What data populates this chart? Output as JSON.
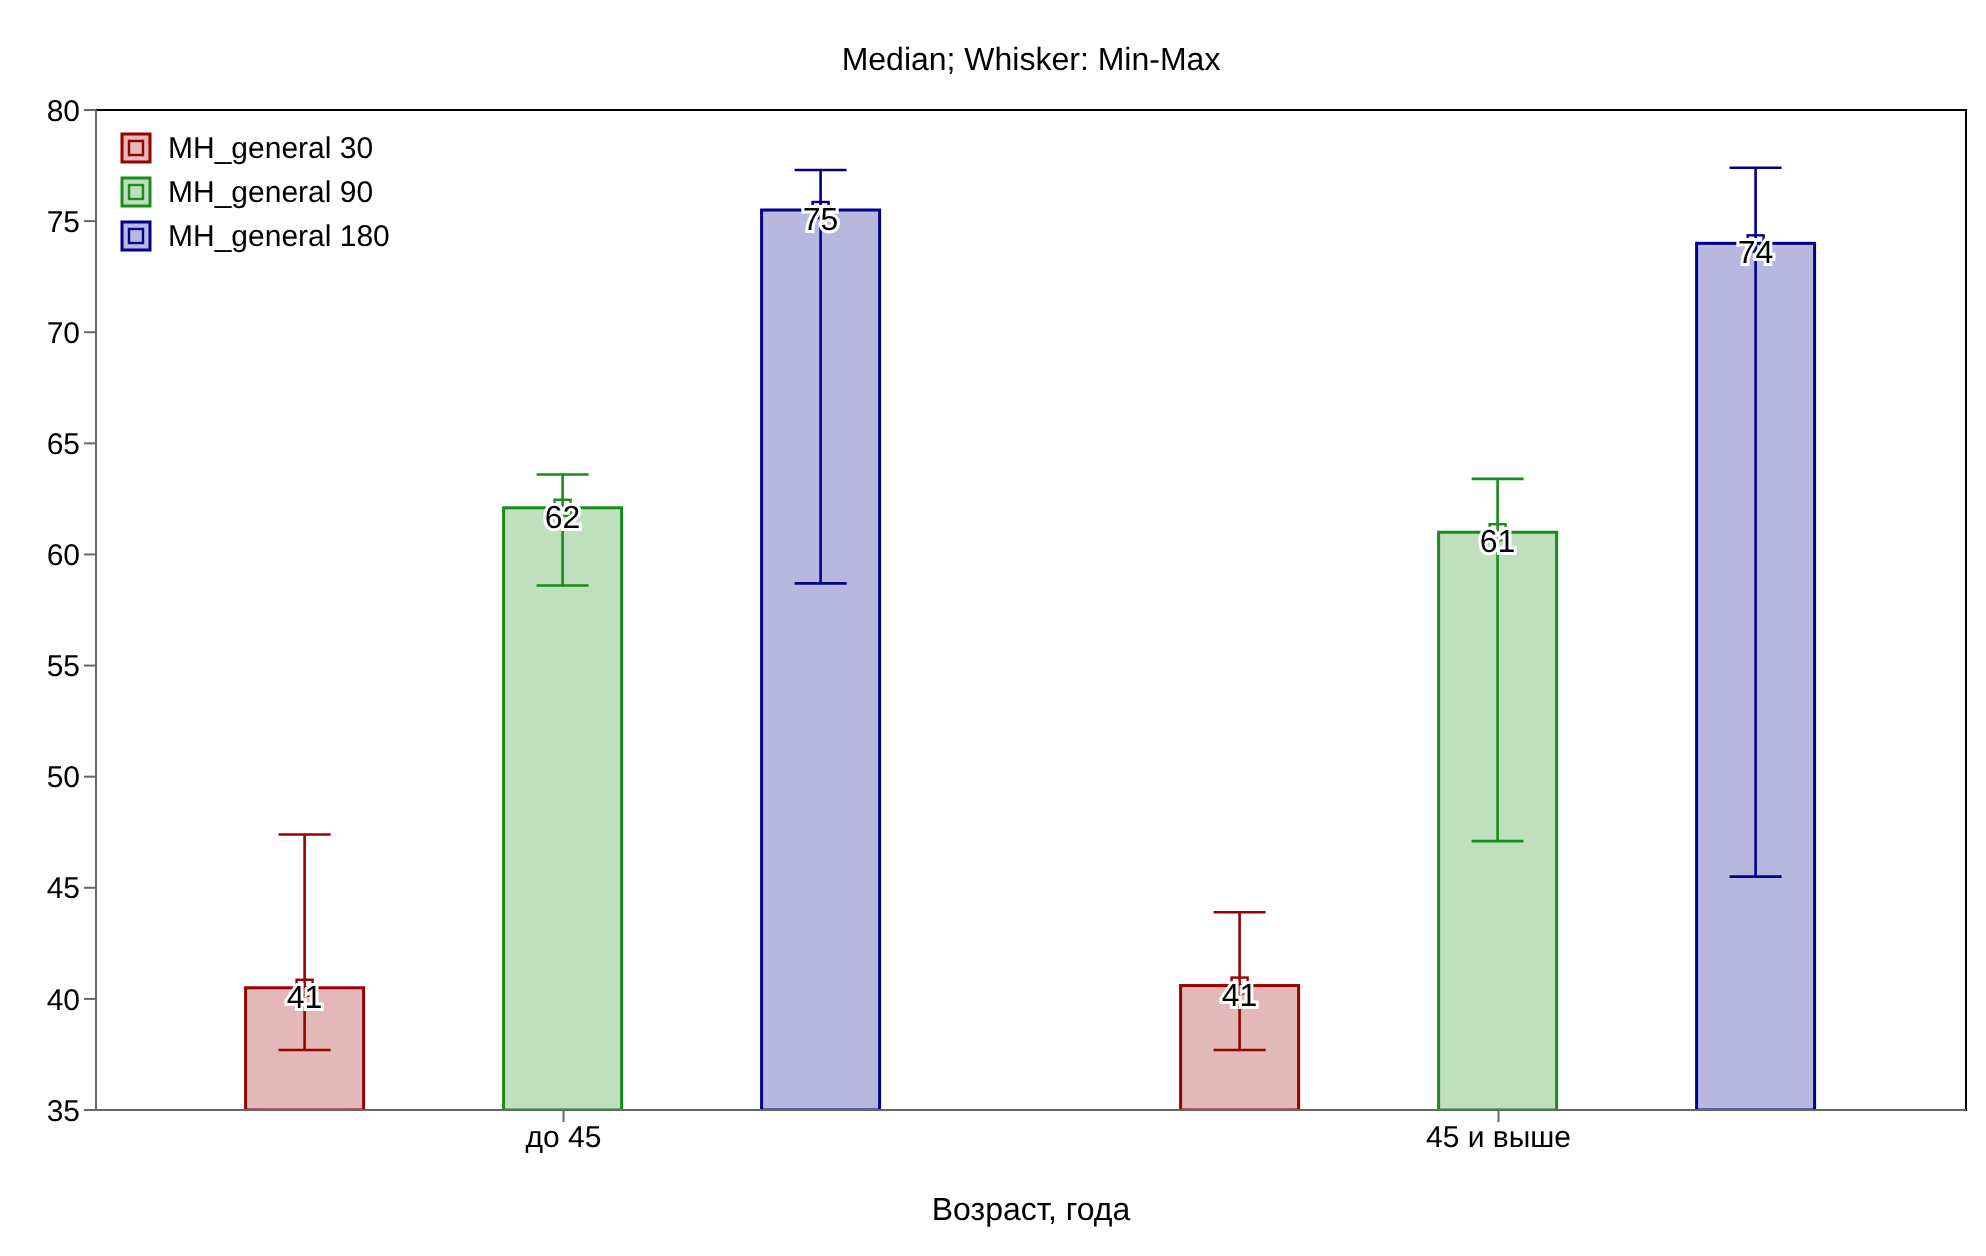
{
  "chart_data": {
    "type": "bar",
    "title": "Median; Whisker: Min-Max",
    "xlabel": "Возраст, года",
    "categories": [
      "до 45",
      "45 и выше"
    ],
    "series": [
      {
        "name": "MH_general 30",
        "color": "#990000",
        "values": [
          40.5,
          40.6
        ],
        "errors": [
          [
            37.7,
            47.4
          ],
          [
            37.7,
            43.9
          ]
        ],
        "value_labels": [
          "41",
          "41"
        ]
      },
      {
        "name": "MH_general 90",
        "color": "#1a8c1a",
        "values": [
          62.1,
          61.0
        ],
        "errors": [
          [
            58.6,
            63.6
          ],
          [
            47.1,
            63.4
          ]
        ],
        "value_labels": [
          "62",
          "61"
        ]
      },
      {
        "name": "MH_general 180",
        "color": "#00008b",
        "values": [
          75.5,
          74.0
        ],
        "errors": [
          [
            58.7,
            77.3
          ],
          [
            45.5,
            77.4
          ]
        ],
        "value_labels": [
          "75",
          "74"
        ]
      }
    ],
    "ylim": [
      35,
      80
    ],
    "yticks": [
      35,
      40,
      45,
      50,
      55,
      60,
      65,
      70,
      75,
      80
    ],
    "grid": false,
    "legend": "top left",
    "marker": "square"
  }
}
